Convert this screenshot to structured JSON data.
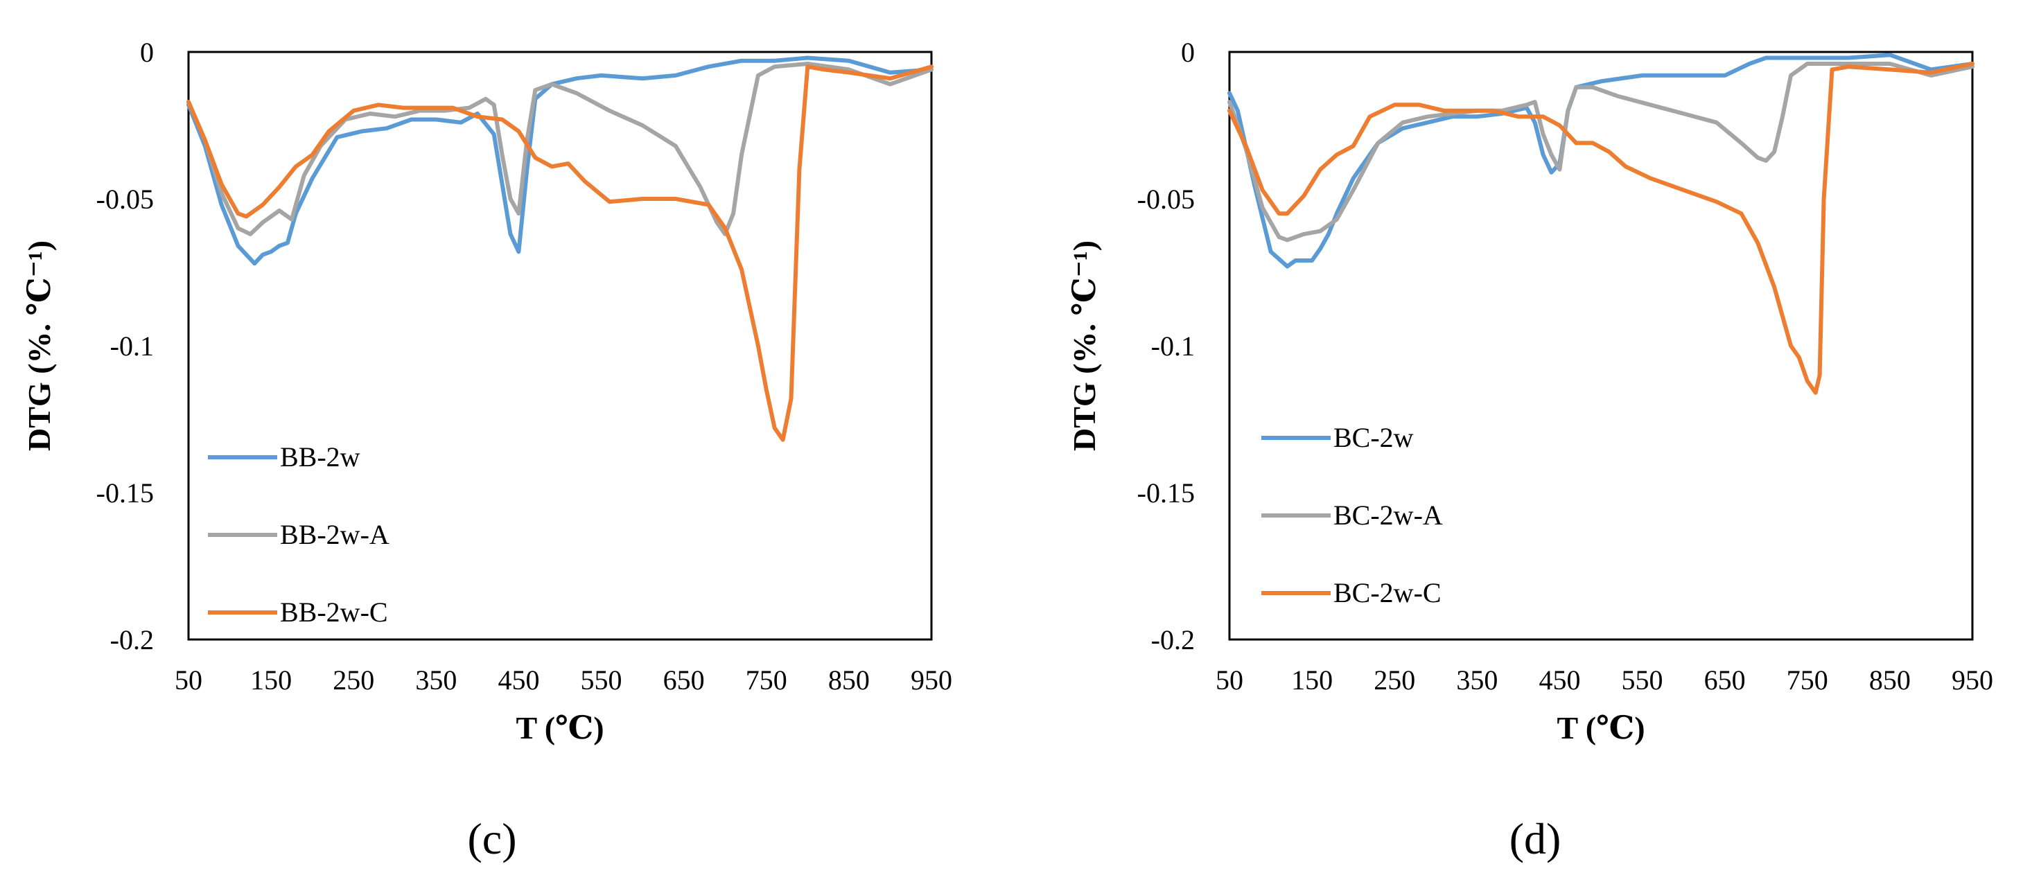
{
  "chart_data": [
    {
      "type": "line",
      "panel_label": "(c)",
      "xlabel": "T (℃)",
      "ylabel": "DTG (%. ℃⁻¹)",
      "xlim": [
        50,
        950
      ],
      "ylim": [
        -0.2,
        0
      ],
      "x_ticks": [
        "50",
        "150",
        "250",
        "350",
        "450",
        "550",
        "650",
        "750",
        "850",
        "950"
      ],
      "y_ticks": [
        "0",
        "-0.05",
        "-0.1",
        "-0.15",
        "-0.2"
      ],
      "legend_position": "bottom-left",
      "series": [
        {
          "name": "BB-2w",
          "color": "#5B9BD5",
          "x": [
            50,
            70,
            90,
            110,
            130,
            140,
            150,
            160,
            170,
            180,
            200,
            230,
            260,
            290,
            320,
            350,
            380,
            400,
            420,
            430,
            440,
            450,
            460,
            470,
            490,
            520,
            550,
            600,
            640,
            680,
            720,
            760,
            800,
            850,
            900,
            950
          ],
          "y": [
            -0.018,
            -0.032,
            -0.052,
            -0.066,
            -0.072,
            -0.069,
            -0.068,
            -0.066,
            -0.065,
            -0.055,
            -0.043,
            -0.029,
            -0.027,
            -0.026,
            -0.023,
            -0.023,
            -0.024,
            -0.021,
            -0.028,
            -0.045,
            -0.062,
            -0.068,
            -0.04,
            -0.016,
            -0.011,
            -0.009,
            -0.008,
            -0.009,
            -0.008,
            -0.005,
            -0.003,
            -0.003,
            -0.002,
            -0.003,
            -0.007,
            -0.006
          ]
        },
        {
          "name": "BB-2w-A",
          "color": "#A5A5A5",
          "x": [
            50,
            70,
            90,
            110,
            125,
            140,
            160,
            175,
            190,
            210,
            240,
            270,
            300,
            330,
            360,
            390,
            410,
            420,
            430,
            440,
            450,
            460,
            470,
            490,
            520,
            560,
            600,
            640,
            670,
            690,
            700,
            710,
            720,
            740,
            760,
            800,
            850,
            900,
            950
          ],
          "y": [
            -0.017,
            -0.03,
            -0.048,
            -0.06,
            -0.062,
            -0.058,
            -0.054,
            -0.057,
            -0.042,
            -0.032,
            -0.023,
            -0.021,
            -0.022,
            -0.02,
            -0.02,
            -0.019,
            -0.016,
            -0.018,
            -0.035,
            -0.05,
            -0.055,
            -0.03,
            -0.013,
            -0.011,
            -0.014,
            -0.02,
            -0.025,
            -0.032,
            -0.046,
            -0.058,
            -0.062,
            -0.055,
            -0.035,
            -0.008,
            -0.005,
            -0.004,
            -0.006,
            -0.011,
            -0.006
          ]
        },
        {
          "name": "BB-2w-C",
          "color": "#ED7D31",
          "x": [
            50,
            70,
            90,
            110,
            120,
            140,
            160,
            180,
            200,
            220,
            250,
            280,
            310,
            340,
            370,
            400,
            430,
            450,
            470,
            490,
            510,
            530,
            560,
            600,
            640,
            680,
            700,
            720,
            740,
            750,
            760,
            770,
            780,
            790,
            800,
            820,
            850,
            900,
            950
          ],
          "y": [
            -0.017,
            -0.03,
            -0.045,
            -0.055,
            -0.056,
            -0.052,
            -0.046,
            -0.039,
            -0.035,
            -0.027,
            -0.02,
            -0.018,
            -0.019,
            -0.019,
            -0.019,
            -0.022,
            -0.023,
            -0.027,
            -0.036,
            -0.039,
            -0.038,
            -0.044,
            -0.051,
            -0.05,
            -0.05,
            -0.052,
            -0.06,
            -0.074,
            -0.1,
            -0.115,
            -0.128,
            -0.132,
            -0.118,
            -0.04,
            -0.005,
            -0.006,
            -0.007,
            -0.009,
            -0.005
          ]
        }
      ]
    },
    {
      "type": "line",
      "panel_label": "(d)",
      "xlabel": "T (℃)",
      "ylabel": "DTG (%. ℃⁻¹)",
      "xlim": [
        50,
        950
      ],
      "ylim": [
        -0.2,
        0
      ],
      "x_ticks": [
        "50",
        "150",
        "250",
        "350",
        "450",
        "550",
        "650",
        "750",
        "850",
        "950"
      ],
      "y_ticks": [
        "0",
        "-0.05",
        "-0.1",
        "-0.15",
        "-0.2"
      ],
      "legend_position": "bottom-left",
      "series": [
        {
          "name": "BC-2w",
          "color": "#5B9BD5",
          "x": [
            50,
            60,
            80,
            100,
            120,
            130,
            140,
            150,
            160,
            170,
            180,
            200,
            230,
            260,
            290,
            320,
            350,
            380,
            410,
            420,
            430,
            440,
            450,
            460,
            470,
            500,
            550,
            600,
            650,
            680,
            700,
            750,
            800,
            850,
            900,
            950
          ],
          "y": [
            -0.014,
            -0.02,
            -0.045,
            -0.068,
            -0.073,
            -0.071,
            -0.071,
            -0.071,
            -0.067,
            -0.062,
            -0.055,
            -0.043,
            -0.031,
            -0.026,
            -0.024,
            -0.022,
            -0.022,
            -0.021,
            -0.019,
            -0.024,
            -0.035,
            -0.041,
            -0.038,
            -0.02,
            -0.012,
            -0.01,
            -0.008,
            -0.008,
            -0.008,
            -0.004,
            -0.002,
            -0.002,
            -0.002,
            -0.001,
            -0.006,
            -0.004
          ]
        },
        {
          "name": "BC-2w-A",
          "color": "#A5A5A5",
          "x": [
            50,
            70,
            90,
            110,
            120,
            140,
            160,
            180,
            200,
            230,
            260,
            290,
            320,
            350,
            380,
            410,
            420,
            430,
            440,
            450,
            460,
            470,
            490,
            520,
            560,
            600,
            640,
            670,
            690,
            700,
            710,
            720,
            730,
            750,
            800,
            850,
            900,
            950
          ],
          "y": [
            -0.017,
            -0.033,
            -0.053,
            -0.063,
            -0.064,
            -0.062,
            -0.061,
            -0.057,
            -0.047,
            -0.031,
            -0.024,
            -0.022,
            -0.021,
            -0.02,
            -0.02,
            -0.018,
            -0.017,
            -0.028,
            -0.035,
            -0.04,
            -0.02,
            -0.012,
            -0.012,
            -0.015,
            -0.018,
            -0.021,
            -0.024,
            -0.031,
            -0.036,
            -0.037,
            -0.034,
            -0.022,
            -0.008,
            -0.004,
            -0.004,
            -0.004,
            -0.008,
            -0.005
          ]
        },
        {
          "name": "BC-2w-C",
          "color": "#ED7D31",
          "x": [
            50,
            70,
            90,
            110,
            120,
            140,
            160,
            180,
            200,
            220,
            250,
            280,
            310,
            340,
            370,
            400,
            430,
            450,
            470,
            490,
            510,
            530,
            560,
            600,
            640,
            670,
            690,
            710,
            730,
            740,
            750,
            760,
            765,
            770,
            780,
            800,
            850,
            900,
            950
          ],
          "y": [
            -0.02,
            -0.032,
            -0.047,
            -0.055,
            -0.055,
            -0.049,
            -0.04,
            -0.035,
            -0.032,
            -0.022,
            -0.018,
            -0.018,
            -0.02,
            -0.02,
            -0.02,
            -0.022,
            -0.022,
            -0.025,
            -0.031,
            -0.031,
            -0.034,
            -0.039,
            -0.043,
            -0.047,
            -0.051,
            -0.055,
            -0.065,
            -0.08,
            -0.1,
            -0.104,
            -0.112,
            -0.116,
            -0.11,
            -0.05,
            -0.006,
            -0.005,
            -0.006,
            -0.007,
            -0.004
          ]
        }
      ]
    }
  ]
}
